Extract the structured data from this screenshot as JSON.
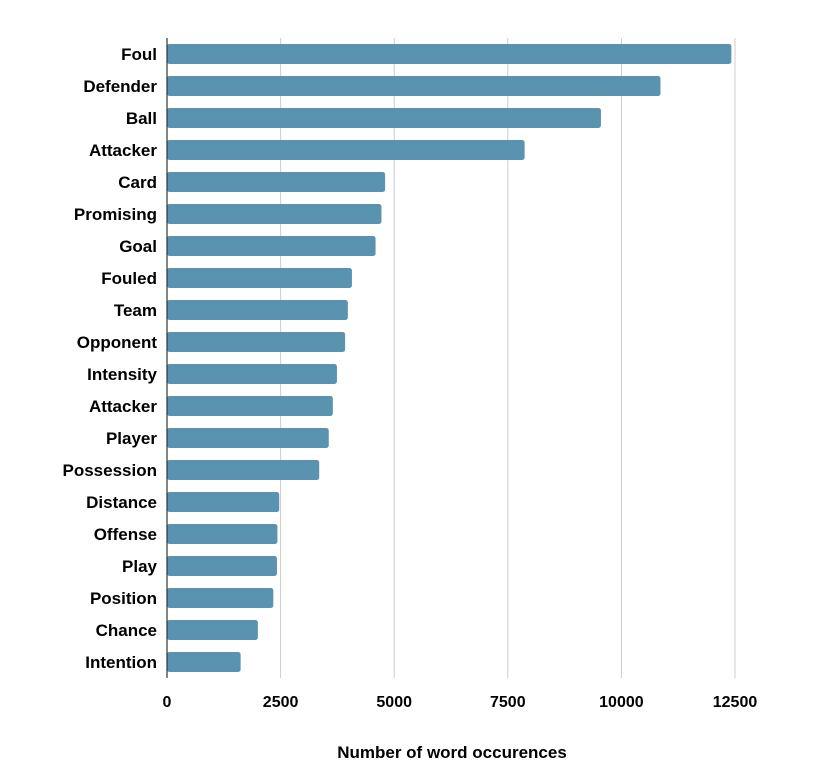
{
  "chart_data": {
    "type": "bar",
    "orientation": "horizontal",
    "title": "",
    "xlabel": "Number of word occurences",
    "ylabel": "",
    "xlim": [
      0,
      13500
    ],
    "xticks": [
      0,
      2500,
      5000,
      7500,
      10000,
      12500
    ],
    "grid": true,
    "legend": "none",
    "bar_color": "#5a93b0",
    "categories": [
      "Foul",
      "Defender",
      "Ball",
      "Attacker",
      "Card",
      "Promising",
      "Goal",
      "Fouled",
      "Team",
      "Opponent",
      "Intensity",
      "Attacker",
      "Player",
      "Possession",
      "Distance",
      "Offense",
      "Play",
      "Position",
      "Chance",
      "Intention"
    ],
    "values": [
      12420,
      10860,
      9550,
      7870,
      4800,
      4720,
      4590,
      4070,
      3980,
      3920,
      3740,
      3650,
      3560,
      3350,
      2470,
      2430,
      2420,
      2340,
      2000,
      1620
    ]
  }
}
